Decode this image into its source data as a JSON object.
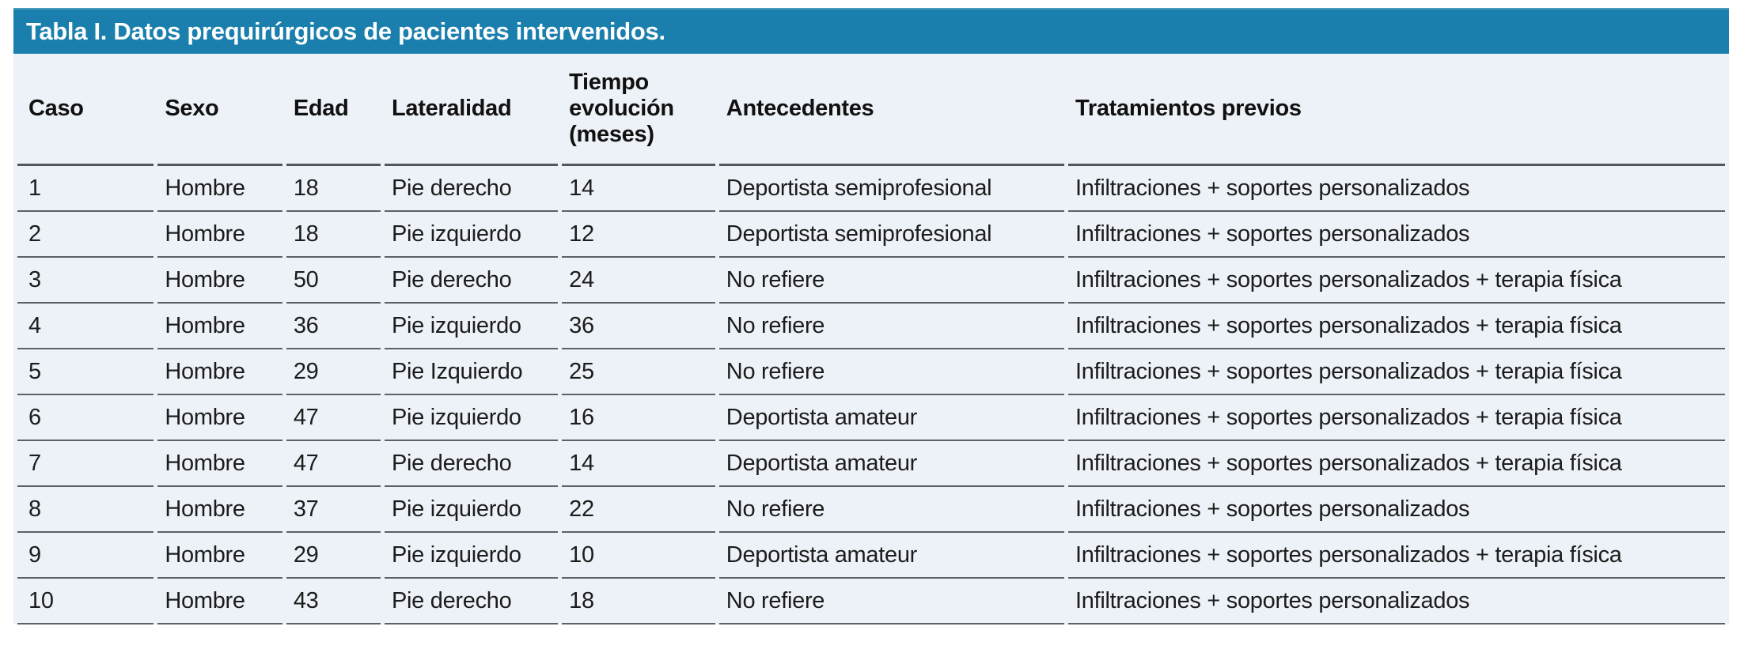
{
  "table": {
    "title": "Tabla I. Datos prequirúrgicos de pacientes intervenidos.",
    "columns": [
      "Caso",
      "Sexo",
      "Edad",
      "Lateralidad",
      "Tiempo evolución (meses)",
      "Antecedentes",
      "Tratamientos previos"
    ],
    "rows": [
      [
        "1",
        "Hombre",
        "18",
        "Pie derecho",
        "14",
        "Deportista semiprofesional",
        "Infiltraciones + soportes personalizados"
      ],
      [
        "2",
        "Hombre",
        "18",
        "Pie izquierdo",
        "12",
        "Deportista semiprofesional",
        "Infiltraciones + soportes personalizados"
      ],
      [
        "3",
        "Hombre",
        "50",
        "Pie derecho",
        "24",
        "No refiere",
        "Infiltraciones + soportes personalizados + terapia física"
      ],
      [
        "4",
        "Hombre",
        "36",
        "Pie izquierdo",
        "36",
        "No refiere",
        "Infiltraciones + soportes personalizados + terapia física"
      ],
      [
        "5",
        "Hombre",
        "29",
        "Pie Izquierdo",
        "25",
        "No refiere",
        "Infiltraciones + soportes personalizados + terapia física"
      ],
      [
        "6",
        "Hombre",
        "47",
        "Pie izquierdo",
        "16",
        "Deportista amateur",
        "Infiltraciones + soportes personalizados + terapia física"
      ],
      [
        "7",
        "Hombre",
        "47",
        "Pie derecho",
        "14",
        "Deportista amateur",
        "Infiltraciones + soportes personalizados + terapia física"
      ],
      [
        "8",
        "Hombre",
        "37",
        "Pie izquierdo",
        "22",
        "No refiere",
        "Infiltraciones + soportes personalizados"
      ],
      [
        "9",
        "Hombre",
        "29",
        "Pie izquierdo",
        "10",
        "Deportista amateur",
        "Infiltraciones + soportes personalizados + terapia física"
      ],
      [
        "10",
        "Hombre",
        "43",
        "Pie derecho",
        "18",
        "No refiere",
        "Infiltraciones + soportes personalizados"
      ]
    ]
  },
  "colors": {
    "title_bar_bg": "#1a7fad",
    "table_bg": "#edf1f8",
    "header_rule": "#55565a",
    "row_rule": "#5e6064",
    "title_text": "#ffffff",
    "body_text": "#1c1c1c"
  }
}
